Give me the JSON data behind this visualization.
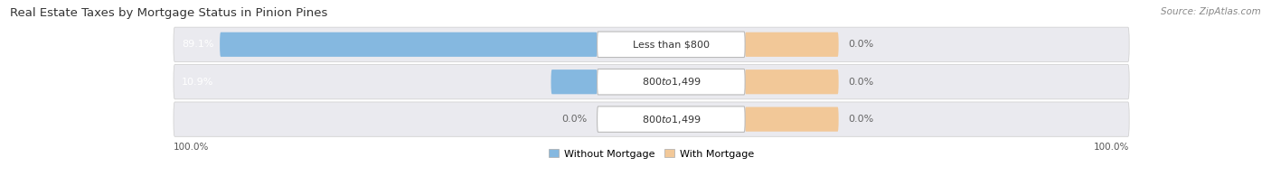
{
  "title": "Real Estate Taxes by Mortgage Status in Pinion Pines",
  "source": "Source: ZipAtlas.com",
  "rows": [
    {
      "label": "Less than $800",
      "without_mortgage": 89.1,
      "with_mortgage": 0.0
    },
    {
      "label": "$800 to $1,499",
      "without_mortgage": 10.9,
      "with_mortgage": 0.0
    },
    {
      "label": "$800 to $1,499",
      "without_mortgage": 0.0,
      "with_mortgage": 0.0
    }
  ],
  "color_without": "#85B8E0",
  "color_with": "#F2C898",
  "row_bg_color": "#EAEAEF",
  "max_value": 100.0,
  "legend_without": "Without Mortgage",
  "legend_with": "With Mortgage",
  "left_label": "100.0%",
  "right_label": "100.0%",
  "title_fontsize": 9.5,
  "label_fontsize": 8.0,
  "tick_fontsize": 7.5,
  "source_fontsize": 7.5
}
